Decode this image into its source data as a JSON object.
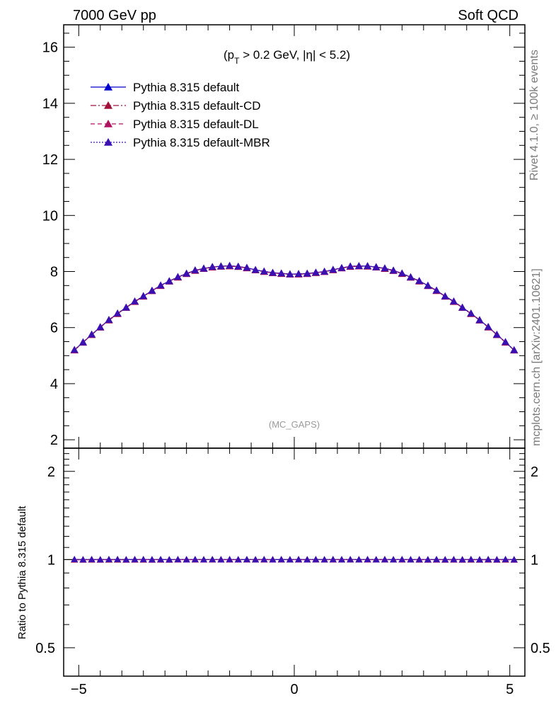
{
  "header": {
    "left": "7000 GeV pp",
    "right": "Soft QCD"
  },
  "side_labels": {
    "rivet": "Rivet 4.1.0, ≥ 100k events",
    "mcplots": "mcplots.cern.ch [arXiv:2401.10621]"
  },
  "watermark": "(MC_GAPS)",
  "cut": {
    "p": "(p",
    "sub": "T",
    "rest": " > 0.2 GeV, |η| < 5.2)"
  },
  "colors": {
    "default": "#0000cc",
    "cd": "#a0103a",
    "dl": "#b01060",
    "mbr": "#3a10b0"
  },
  "chart_data": {
    "type": "line",
    "x": [
      -5.1,
      -4.9,
      -4.7,
      -4.5,
      -4.3,
      -4.1,
      -3.9,
      -3.7,
      -3.5,
      -3.3,
      -3.1,
      -2.9,
      -2.7,
      -2.5,
      -2.3,
      -2.1,
      -1.9,
      -1.7,
      -1.5,
      -1.3,
      -1.1,
      -0.9,
      -0.7,
      -0.5,
      -0.3,
      -0.1,
      0.1,
      0.3,
      0.5,
      0.7,
      0.9,
      1.1,
      1.3,
      1.5,
      1.7,
      1.9,
      2.1,
      2.3,
      2.5,
      2.7,
      2.9,
      3.1,
      3.3,
      3.5,
      3.7,
      3.9,
      4.1,
      4.3,
      4.5,
      4.7,
      4.9,
      5.1
    ],
    "series": [
      {
        "name": "Pythia 8.315 default",
        "style": "solid",
        "color": "#0000cc",
        "values": [
          5.2,
          5.48,
          5.75,
          6.02,
          6.27,
          6.5,
          6.72,
          6.93,
          7.12,
          7.32,
          7.5,
          7.66,
          7.8,
          7.93,
          8.04,
          8.11,
          8.16,
          8.19,
          8.2,
          8.18,
          8.13,
          8.06,
          8.0,
          7.96,
          7.93,
          7.91,
          7.91,
          7.93,
          7.96,
          8.0,
          8.06,
          8.13,
          8.18,
          8.2,
          8.19,
          8.16,
          8.11,
          8.04,
          7.93,
          7.8,
          7.66,
          7.5,
          7.32,
          7.12,
          6.93,
          6.72,
          6.5,
          6.27,
          6.02,
          5.75,
          5.48,
          5.2
        ]
      },
      {
        "name": "Pythia 8.315 default-CD",
        "style": "dashdot",
        "color": "#a0103a",
        "values": [
          5.19,
          5.47,
          5.74,
          6.01,
          6.26,
          6.49,
          6.71,
          6.92,
          7.11,
          7.31,
          7.49,
          7.65,
          7.79,
          7.92,
          8.03,
          8.1,
          8.15,
          8.18,
          8.19,
          8.17,
          8.12,
          8.05,
          7.99,
          7.95,
          7.92,
          7.9,
          7.9,
          7.92,
          7.95,
          7.99,
          8.05,
          8.12,
          8.17,
          8.19,
          8.18,
          8.15,
          8.1,
          8.03,
          7.92,
          7.79,
          7.65,
          7.49,
          7.31,
          7.11,
          6.92,
          6.71,
          6.49,
          6.26,
          6.01,
          5.74,
          5.47,
          5.19
        ]
      },
      {
        "name": "Pythia 8.315 default-DL",
        "style": "dashed",
        "color": "#b01060",
        "values": [
          5.2,
          5.47,
          5.75,
          6.01,
          6.27,
          6.5,
          6.71,
          6.93,
          7.12,
          7.31,
          7.5,
          7.65,
          7.8,
          7.92,
          8.04,
          8.1,
          8.16,
          8.18,
          8.2,
          8.17,
          8.13,
          8.05,
          8.0,
          7.95,
          7.93,
          7.9,
          7.91,
          7.92,
          7.96,
          7.99,
          8.06,
          8.12,
          8.18,
          8.19,
          8.19,
          8.15,
          8.11,
          8.03,
          7.93,
          7.79,
          7.66,
          7.49,
          7.32,
          7.11,
          6.93,
          6.71,
          6.5,
          6.26,
          6.02,
          5.74,
          5.48,
          5.19
        ]
      },
      {
        "name": "Pythia 8.315 default-MBR",
        "style": "dotted",
        "color": "#3a10b0",
        "values": [
          5.21,
          5.48,
          5.76,
          6.02,
          6.28,
          6.51,
          6.72,
          6.94,
          7.13,
          7.32,
          7.51,
          7.66,
          7.81,
          7.93,
          8.05,
          8.11,
          8.17,
          8.19,
          8.21,
          8.18,
          8.14,
          8.06,
          8.01,
          7.96,
          7.94,
          7.91,
          7.92,
          7.93,
          7.97,
          8.0,
          8.07,
          8.13,
          8.19,
          8.2,
          8.2,
          8.16,
          8.12,
          8.04,
          7.94,
          7.8,
          7.67,
          7.5,
          7.33,
          7.12,
          6.94,
          6.72,
          6.51,
          6.27,
          6.03,
          5.75,
          5.49,
          5.2
        ]
      }
    ],
    "main_ylim": [
      1.7,
      16.8
    ],
    "main_yticks": [
      2,
      4,
      6,
      8,
      10,
      12,
      14,
      16
    ],
    "ratio_ylabel": "Ratio to Pythia 8.315 default",
    "ratio_ylim": [
      0.4,
      2.4
    ],
    "ratio_yticks": [
      0.5,
      1,
      2
    ],
    "xlim": [
      -5.35,
      5.35
    ],
    "xticks": [
      -5,
      0,
      5
    ],
    "xtick_labels": [
      "−5",
      "0",
      "5"
    ],
    "legend_loc": "top-left"
  }
}
